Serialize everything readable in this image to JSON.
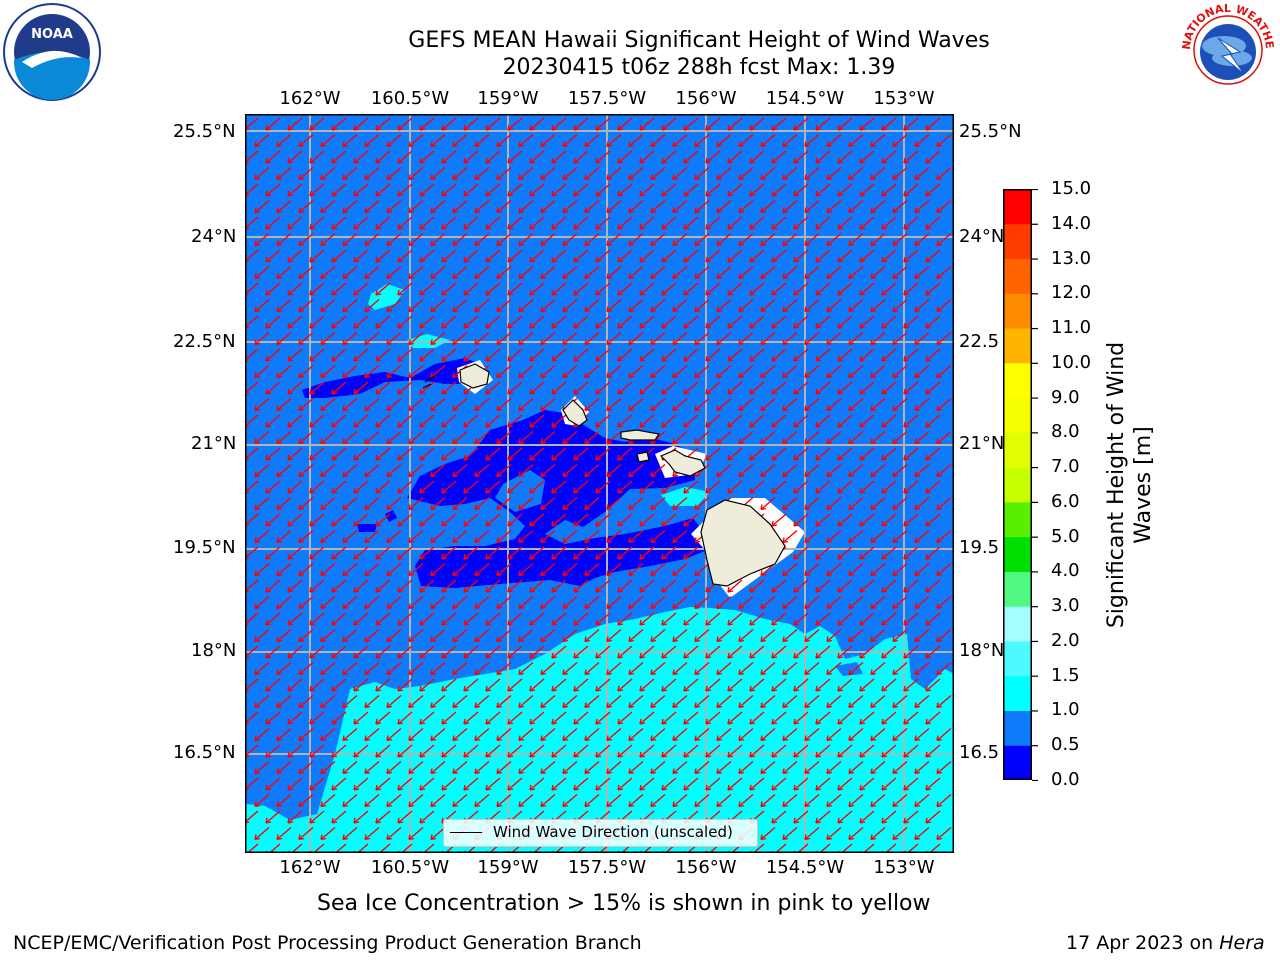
{
  "header": {
    "title_line1": "GEFS MEAN Hawaii Significant Height of Wind Waves",
    "title_line2": "20230415 t06z 288h fcst   Max: 1.39"
  },
  "logos": {
    "noaa_text": "NOAA",
    "nws_text": "NATIONAL WEATHER SERVICE"
  },
  "map": {
    "lon_labels": [
      "162°W",
      "160.5°W",
      "159°W",
      "157.5°W",
      "156°W",
      "154.5°W",
      "153°W"
    ],
    "lat_labels_left": [
      "25.5°N",
      "24°N",
      "22.5°N",
      "21°N",
      "19.5°N",
      "18°N",
      "16.5°N"
    ],
    "lat_labels_right": [
      "25.5°N",
      "24°N",
      "22.5",
      "21°N",
      "19.5",
      "18°N",
      "16.5"
    ],
    "legend_label": "Wind Wave Direction (unscaled)",
    "colors": {
      "ocean_low": "#0000ff",
      "ocean_mid": "#0f7bfa",
      "ocean_high": "#00ffff",
      "land": "#efecd9",
      "arrow": "#ff0000",
      "grid": "#b4b4b4"
    }
  },
  "colorbar": {
    "label": "Significant Height of Wind Waves [m]",
    "label_line1": "Significant Height of Wind",
    "label_line2": "Waves [m]",
    "tick_labels": [
      "15.0",
      "14.0",
      "13.0",
      "12.0",
      "11.0",
      "10.0",
      "9.0",
      "8.0",
      "7.0",
      "6.0",
      "5.0",
      "4.0",
      "3.0",
      "2.0",
      "1.5",
      "1.0",
      "0.5",
      "0.0"
    ],
    "bands": [
      {
        "from": 0.0,
        "to": 0.5,
        "color": "#0000ff"
      },
      {
        "from": 0.5,
        "to": 1.0,
        "color": "#0f7bfa"
      },
      {
        "from": 1.0,
        "to": 1.5,
        "color": "#00ffff"
      },
      {
        "from": 1.5,
        "to": 2.0,
        "color": "#4cfaff"
      },
      {
        "from": 2.0,
        "to": 3.0,
        "color": "#a6fdff"
      },
      {
        "from": 3.0,
        "to": 4.0,
        "color": "#50fa80"
      },
      {
        "from": 4.0,
        "to": 5.0,
        "color": "#00e000"
      },
      {
        "from": 5.0,
        "to": 6.0,
        "color": "#58f000"
      },
      {
        "from": 6.0,
        "to": 7.0,
        "color": "#c8ff00"
      },
      {
        "from": 7.0,
        "to": 8.0,
        "color": "#e1ff00"
      },
      {
        "from": 8.0,
        "to": 9.0,
        "color": "#f5ff00"
      },
      {
        "from": 9.0,
        "to": 10.0,
        "color": "#ffff00"
      },
      {
        "from": 10.0,
        "to": 11.0,
        "color": "#ffb400"
      },
      {
        "from": 11.0,
        "to": 12.0,
        "color": "#ff8c00"
      },
      {
        "from": 12.0,
        "to": 13.0,
        "color": "#ff6400"
      },
      {
        "from": 13.0,
        "to": 14.0,
        "color": "#ff3c00"
      },
      {
        "from": 14.0,
        "to": 15.0,
        "color": "#ff0000"
      }
    ]
  },
  "captions": {
    "sea_ice": "Sea Ice Concentration > 15% is shown in pink to yellow",
    "branch": "NCEP/EMC/Verification Post Processing Product Generation Branch",
    "date_prefix": "17 Apr 2023 on ",
    "date_machine": "Hera"
  }
}
